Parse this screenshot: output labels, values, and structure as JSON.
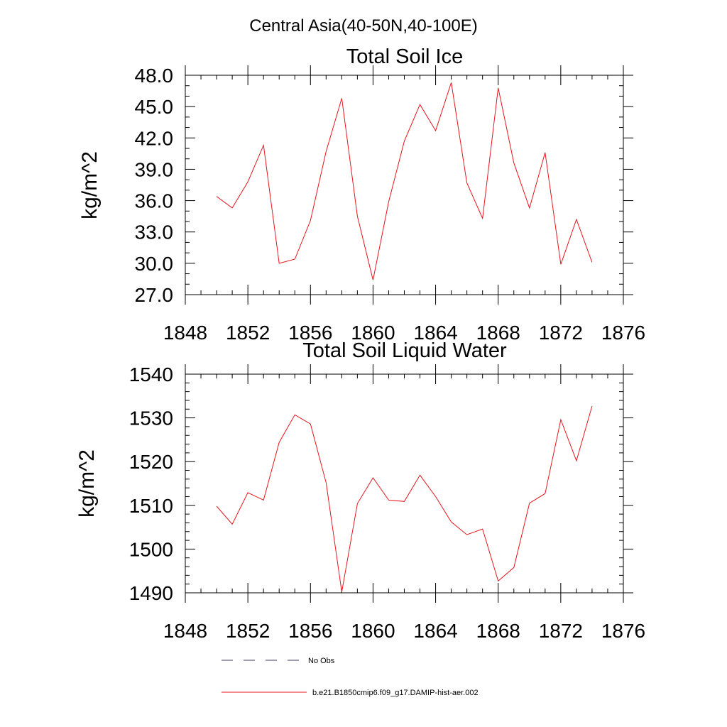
{
  "page_title": "Central Asia(40-50N,40-100E)",
  "legend": {
    "entries": [
      {
        "label": "No Obs",
        "style": "dashed",
        "color": "#3a3a6a"
      },
      {
        "label": "b.e21.B1850cmip6.f09_g17.DAMIP-hist-aer.002",
        "style": "solid",
        "color": "#e8141c"
      }
    ]
  },
  "chart_data": [
    {
      "type": "line",
      "title": "Total Soil Ice",
      "ylabel": "kg/m^2",
      "xlabel": "",
      "xlim": [
        1848,
        1876
      ],
      "ylim": [
        27,
        48
      ],
      "xticks": [
        1848,
        1852,
        1856,
        1860,
        1864,
        1868,
        1872,
        1876
      ],
      "xtick_labels": [
        "1848",
        "1852",
        "1856",
        "1860",
        "1864",
        "1868",
        "1872",
        "1876"
      ],
      "yticks": [
        27,
        30,
        33,
        36,
        39,
        42,
        45,
        48
      ],
      "ytick_labels": [
        "27.0",
        "30.0",
        "33.0",
        "36.0",
        "39.0",
        "42.0",
        "45.0",
        "48.0"
      ],
      "x_minor_step": 1,
      "y_minor_step": 1,
      "grid": false,
      "series": [
        {
          "color": "#e8141c",
          "x": [
            1850,
            1851,
            1852,
            1853,
            1854,
            1855,
            1856,
            1857,
            1858,
            1859,
            1860,
            1861,
            1862,
            1863,
            1864,
            1865,
            1866,
            1867,
            1868,
            1869,
            1870,
            1871,
            1872,
            1873,
            1874
          ],
          "y": [
            36.4,
            35.3,
            37.8,
            41.3,
            30.0,
            30.4,
            34.1,
            40.7,
            45.8,
            34.5,
            28.4,
            35.9,
            41.7,
            45.2,
            42.7,
            47.3,
            37.7,
            34.3,
            46.8,
            39.6,
            35.3,
            40.6,
            29.9,
            34.2,
            30.1
          ]
        }
      ]
    },
    {
      "type": "line",
      "title": "Total Soil Liquid Water",
      "ylabel": "kg/m^2",
      "xlabel": "",
      "xlim": [
        1848,
        1876
      ],
      "ylim": [
        1490,
        1540
      ],
      "xticks": [
        1848,
        1852,
        1856,
        1860,
        1864,
        1868,
        1872,
        1876
      ],
      "xtick_labels": [
        "1848",
        "1852",
        "1856",
        "1860",
        "1864",
        "1868",
        "1872",
        "1876"
      ],
      "yticks": [
        1490,
        1500,
        1510,
        1520,
        1530,
        1540
      ],
      "ytick_labels": [
        "1490",
        "1500",
        "1510",
        "1520",
        "1530",
        "1540"
      ],
      "x_minor_step": 1,
      "y_minor_step": 2,
      "grid": false,
      "series": [
        {
          "color": "#e8141c",
          "x": [
            1850,
            1851,
            1852,
            1853,
            1854,
            1855,
            1856,
            1857,
            1858,
            1859,
            1860,
            1861,
            1862,
            1863,
            1864,
            1865,
            1866,
            1867,
            1868,
            1869,
            1870,
            1871,
            1872,
            1873,
            1874
          ],
          "y": [
            1509.8,
            1505.7,
            1512.9,
            1511.2,
            1524.4,
            1530.7,
            1528.6,
            1515.2,
            1490.2,
            1510.4,
            1516.3,
            1511.2,
            1510.9,
            1516.9,
            1512.0,
            1506.2,
            1503.3,
            1504.6,
            1492.7,
            1495.8,
            1510.5,
            1512.7,
            1529.6,
            1520.2,
            1532.7
          ]
        }
      ]
    }
  ]
}
